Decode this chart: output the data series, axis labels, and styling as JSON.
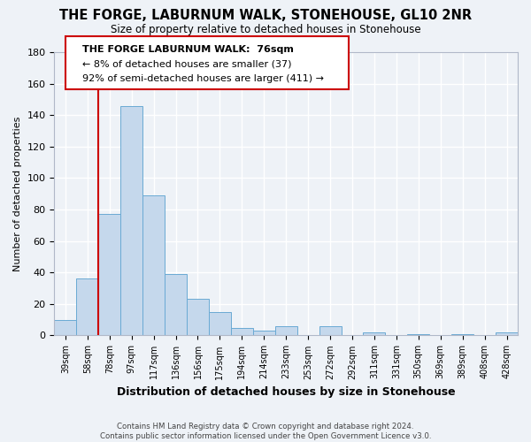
{
  "title": "THE FORGE, LABURNUM WALK, STONEHOUSE, GL10 2NR",
  "subtitle": "Size of property relative to detached houses in Stonehouse",
  "xlabel": "Distribution of detached houses by size in Stonehouse",
  "ylabel": "Number of detached properties",
  "bar_labels": [
    "39sqm",
    "58sqm",
    "78sqm",
    "97sqm",
    "117sqm",
    "136sqm",
    "156sqm",
    "175sqm",
    "194sqm",
    "214sqm",
    "233sqm",
    "253sqm",
    "272sqm",
    "292sqm",
    "311sqm",
    "331sqm",
    "350sqm",
    "369sqm",
    "389sqm",
    "408sqm",
    "428sqm"
  ],
  "bar_values": [
    10,
    36,
    77,
    146,
    89,
    39,
    23,
    15,
    5,
    3,
    6,
    0,
    6,
    0,
    2,
    0,
    1,
    0,
    1,
    0,
    2
  ],
  "bar_color": "#c5d8ec",
  "bar_edge_color": "#6aaad4",
  "vline_color": "#cc0000",
  "ylim": [
    0,
    180
  ],
  "yticks": [
    0,
    20,
    40,
    60,
    80,
    100,
    120,
    140,
    160,
    180
  ],
  "annotation_title": "THE FORGE LABURNUM WALK:  76sqm",
  "annotation_line1": "← 8% of detached houses are smaller (37)",
  "annotation_line2": "92% of semi-detached houses are larger (411) →",
  "annotation_box_color": "#ffffff",
  "annotation_border_color": "#cc0000",
  "footer1": "Contains HM Land Registry data © Crown copyright and database right 2024.",
  "footer2": "Contains public sector information licensed under the Open Government Licence v3.0.",
  "bg_color": "#eef2f7",
  "grid_color": "#ffffff"
}
